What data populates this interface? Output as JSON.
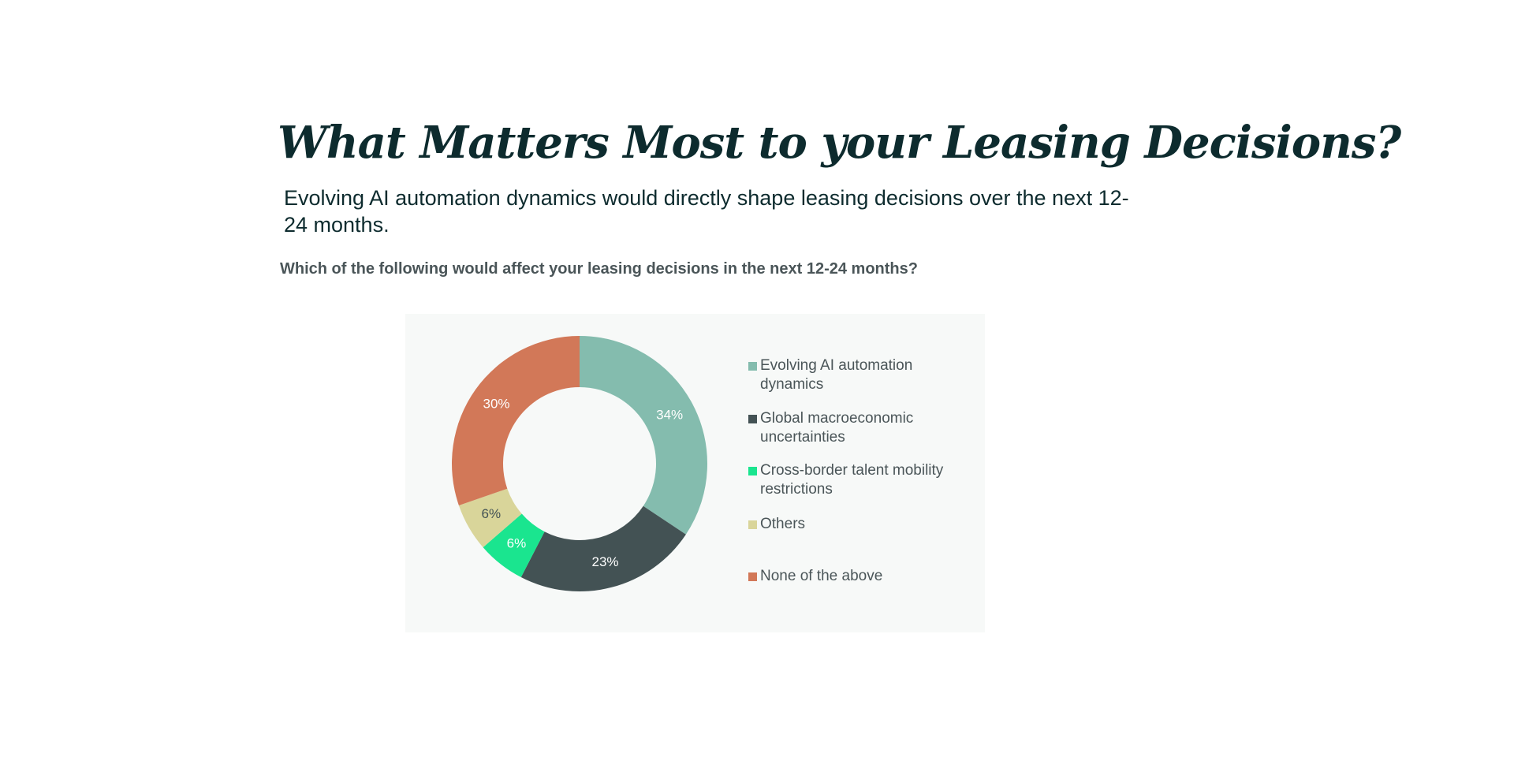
{
  "header": {
    "title": "What Matters Most to your Leasing Decisions?",
    "subtitle": "Evolving AI automation dynamics would directly shape leasing decisions over the next 12-24 months.",
    "question": "Which of the following would affect your leasing decisions in the next 12-24 months?"
  },
  "chart_data": {
    "type": "donut",
    "categories": [
      "Evolving AI automation dynamics",
      "Global macroeconomic uncertainties",
      "Cross-border talent mobility restrictions",
      "Others",
      "None of the above"
    ],
    "values": [
      34,
      23,
      6,
      6,
      30
    ],
    "value_labels": [
      "34%",
      "23%",
      "6%",
      "6%",
      "30%"
    ],
    "colors": [
      "#84bcae",
      "#435254",
      "#1ae58f",
      "#d9d59a",
      "#d27858"
    ],
    "legend": "right"
  }
}
